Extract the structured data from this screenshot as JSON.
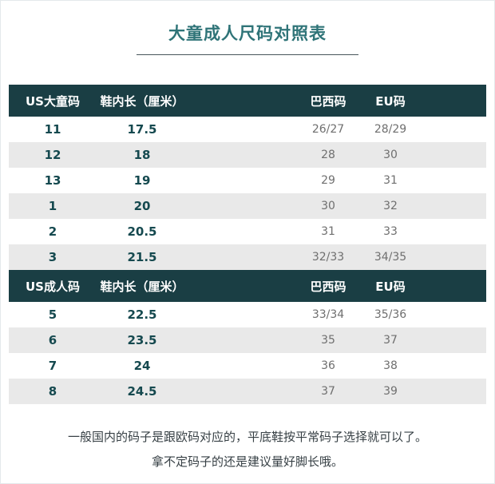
{
  "title": "大童成人尺码对照表",
  "footer": {
    "line1": "一般国内的码子是跟欧码对应的，平底鞋按平常码子选择就可以了。",
    "line2": "拿不定码子的还是建议量好脚长哦。"
  },
  "colors": {
    "header_bg": "#1a3e44",
    "title_text": "#2f7478",
    "primary_value_text": "#15494f",
    "secondary_value_text": "#6f6f6f",
    "row_alt_bg": "#e9e9e9",
    "underline": "#47555a",
    "footer_text": "#374045"
  },
  "chart_data": {
    "type": "table",
    "title": "大童成人尺码对照表",
    "tables": [
      {
        "name": "US大童码",
        "columns": [
          "US大童码",
          "鞋内长（厘米）",
          "巴西码",
          "EU码"
        ],
        "rows": [
          [
            "11",
            "17.5",
            "26/27",
            "28/29"
          ],
          [
            "12",
            "18",
            "28",
            "30"
          ],
          [
            "13",
            "19",
            "29",
            "31"
          ],
          [
            "1",
            "20",
            "30",
            "32"
          ],
          [
            "2",
            "20.5",
            "31",
            "33"
          ],
          [
            "3",
            "21.5",
            "32/33",
            "34/35"
          ]
        ]
      },
      {
        "name": "US成人码",
        "columns": [
          "US成人码",
          "鞋内长（厘米）",
          "巴西码",
          "EU码"
        ],
        "rows": [
          [
            "5",
            "22.5",
            "33/34",
            "35/36"
          ],
          [
            "6",
            "23.5",
            "35",
            "37"
          ],
          [
            "7",
            "24",
            "36",
            "38"
          ],
          [
            "8",
            "24.5",
            "37",
            "39"
          ]
        ]
      }
    ]
  }
}
